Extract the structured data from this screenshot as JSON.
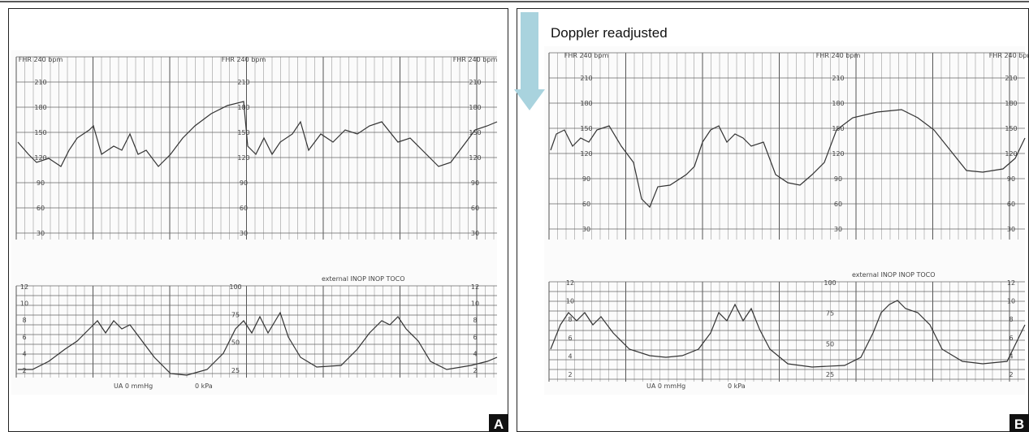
{
  "panels": [
    {
      "label": "A",
      "fhr_header": "FHR 240 bpm",
      "fhr_scale": [
        "210",
        "180",
        "150",
        "120",
        "90",
        "60",
        "30"
      ],
      "toco_header": "external INOP INOP TOCO",
      "toco_scale": [
        "100",
        "75",
        "50",
        "25"
      ],
      "kpa_scale": [
        "12",
        "10",
        "8",
        "6",
        "4",
        "2"
      ],
      "footer": [
        "UA 0 mmHg",
        "0 kPa"
      ]
    },
    {
      "label": "B",
      "annotation": "Doppler readjusted",
      "fhr_header": "FHR 240 bpm",
      "fhr_scale": [
        "210",
        "180",
        "150",
        "120",
        "90",
        "60",
        "30"
      ],
      "toco_header": "external INOP INOP TOCO",
      "toco_scale": [
        "100",
        "75",
        "50",
        "25"
      ],
      "kpa_scale": [
        "12",
        "10",
        "8",
        "6",
        "4",
        "2"
      ],
      "footer": [
        "UA 0 mmHg",
        "0 kPa"
      ]
    }
  ]
}
